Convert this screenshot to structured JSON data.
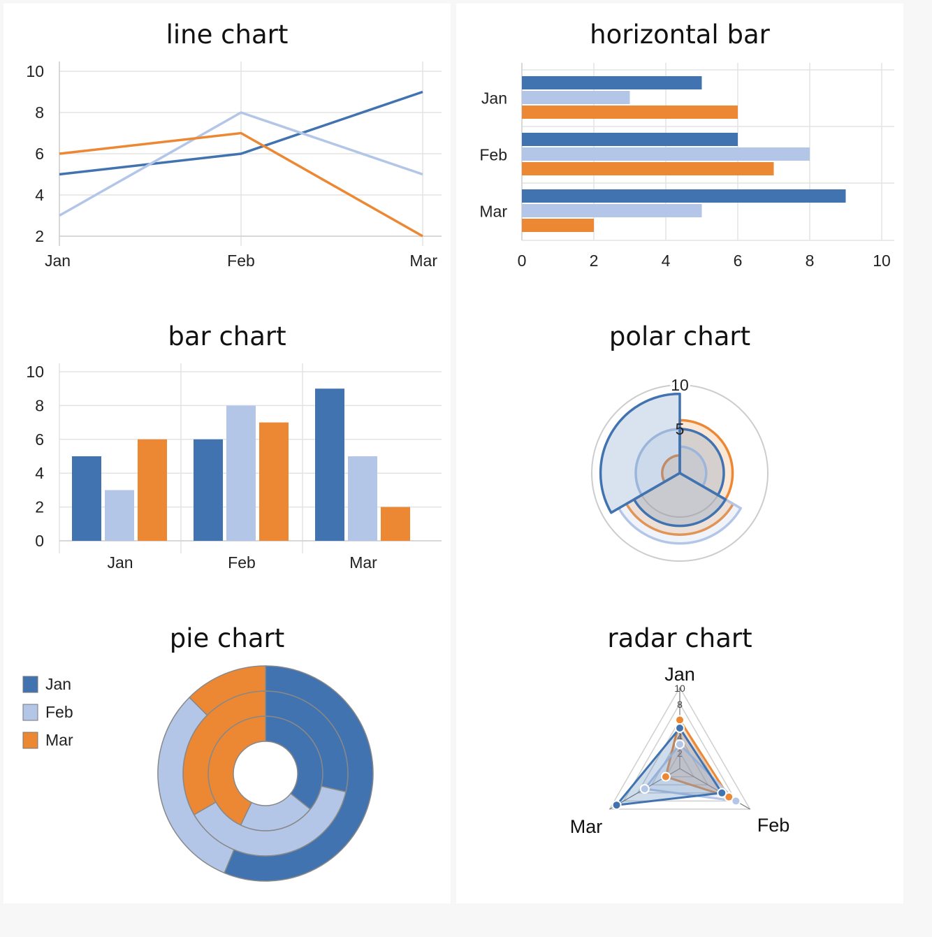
{
  "colors": {
    "Jan": "#4073b0",
    "Feb": "#b3c6e7",
    "Mar": "#ec8834"
  },
  "line_chart": {
    "title": "line chart",
    "chart_data": {
      "type": "line",
      "categories": [
        "Jan",
        "Feb",
        "Mar"
      ],
      "series": [
        {
          "name": "Jan",
          "values": [
            5,
            6,
            9
          ]
        },
        {
          "name": "Feb",
          "values": [
            3,
            8,
            5
          ]
        },
        {
          "name": "Mar",
          "values": [
            6,
            7,
            2
          ]
        }
      ],
      "yticks": [
        2,
        4,
        6,
        8,
        10
      ],
      "ylim": [
        2,
        10
      ],
      "grid": true
    }
  },
  "horizontal_bar": {
    "title": "horizontal bar",
    "chart_data": {
      "type": "bar",
      "orientation": "horizontal",
      "categories": [
        "Jan",
        "Feb",
        "Mar"
      ],
      "series": [
        {
          "name": "Jan",
          "values": [
            5,
            6,
            9
          ]
        },
        {
          "name": "Feb",
          "values": [
            3,
            8,
            5
          ]
        },
        {
          "name": "Mar",
          "values": [
            6,
            7,
            2
          ]
        }
      ],
      "xticks": [
        0,
        2,
        4,
        6,
        8,
        10
      ],
      "xlim": [
        0,
        10
      ],
      "grid": true
    }
  },
  "bar_chart": {
    "title": "bar chart",
    "chart_data": {
      "type": "bar",
      "categories": [
        "Jan",
        "Feb",
        "Mar"
      ],
      "series": [
        {
          "name": "Jan",
          "values": [
            5,
            6,
            9
          ]
        },
        {
          "name": "Feb",
          "values": [
            3,
            8,
            5
          ]
        },
        {
          "name": "Mar",
          "values": [
            6,
            7,
            2
          ]
        }
      ],
      "yticks": [
        0,
        2,
        4,
        6,
        8,
        10
      ],
      "ylim": [
        0,
        10
      ],
      "grid": true
    }
  },
  "polar_chart": {
    "title": "polar chart",
    "chart_data": {
      "type": "polar",
      "categories": [
        "Jan",
        "Feb",
        "Mar"
      ],
      "series": [
        {
          "name": "Jan",
          "values": [
            5,
            6,
            9
          ]
        },
        {
          "name": "Feb",
          "values": [
            3,
            8,
            5
          ]
        },
        {
          "name": "Mar",
          "values": [
            6,
            7,
            2
          ]
        }
      ],
      "rticks": [
        5,
        10
      ],
      "rlim": [
        0,
        10
      ]
    }
  },
  "pie_chart": {
    "title": "pie chart",
    "chart_data": {
      "type": "pie",
      "variant": "nested-donut",
      "categories": [
        "Jan",
        "Feb",
        "Mar"
      ],
      "rings": [
        {
          "name": "Jan",
          "values": [
            5,
            3,
            6
          ]
        },
        {
          "name": "Feb",
          "values": [
            6,
            8,
            7
          ]
        },
        {
          "name": "Mar",
          "values": [
            9,
            5,
            2
          ]
        }
      ],
      "legend": [
        "Jan",
        "Feb",
        "Mar"
      ],
      "legend_position": "left"
    }
  },
  "radar_chart": {
    "title": "radar chart",
    "chart_data": {
      "type": "radar",
      "axes": [
        "Jan",
        "Feb",
        "Mar"
      ],
      "series": [
        {
          "name": "Jan",
          "values": [
            5,
            6,
            9
          ]
        },
        {
          "name": "Feb",
          "values": [
            3,
            8,
            5
          ]
        },
        {
          "name": "Mar",
          "values": [
            6,
            7,
            2
          ]
        }
      ],
      "rticks": [
        2,
        4,
        6,
        8,
        10
      ],
      "rlim": [
        0,
        10
      ]
    }
  }
}
